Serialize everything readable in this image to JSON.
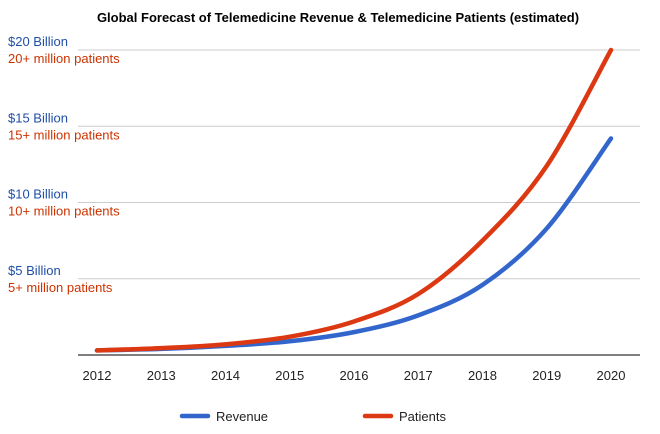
{
  "chart_data": {
    "type": "line",
    "title": "Global Forecast of Telemedicine Revenue & Telemedicine Patients (estimated)",
    "x": [
      "2012",
      "2013",
      "2014",
      "2015",
      "2016",
      "2017",
      "2018",
      "2019",
      "2020"
    ],
    "xlabel": "",
    "ylabel": "",
    "ylim": [
      0,
      20
    ],
    "y_tick_values": [
      0,
      5,
      10,
      15,
      20
    ],
    "y_tick_labels": [
      {
        "value": 5,
        "revenue_label": "$5 Billion",
        "patients_label": "5+ million patients"
      },
      {
        "value": 10,
        "revenue_label": "$10 Billion",
        "patients_label": "10+ million patients"
      },
      {
        "value": 15,
        "revenue_label": "$15 Billion",
        "patients_label": "15+ million patients"
      },
      {
        "value": 20,
        "revenue_label": "$20 Billion",
        "patients_label": "20+ million patients"
      }
    ],
    "series": [
      {
        "name": "Revenue",
        "color": "#3366cc",
        "values": [
          0.3,
          0.4,
          0.6,
          0.9,
          1.5,
          2.6,
          4.6,
          8.3,
          14.2
        ]
      },
      {
        "name": "Patients",
        "color": "#dc3912",
        "values": [
          0.3,
          0.45,
          0.7,
          1.2,
          2.2,
          4.0,
          7.5,
          12.4,
          20.0
        ]
      }
    ],
    "legend_position": "bottom",
    "grid": true,
    "label_colors": {
      "revenue": "#1f4fa6",
      "patients": "#cc3300"
    }
  }
}
